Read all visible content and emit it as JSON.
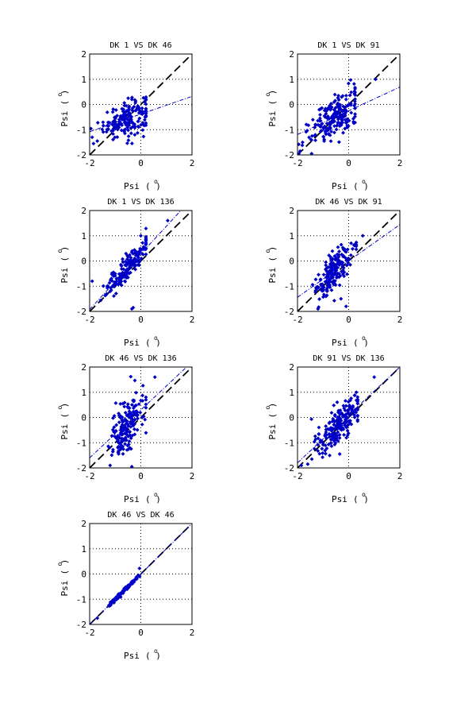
{
  "chart_data": [
    {
      "type": "scatter",
      "title": "DK  1 VS DK 46",
      "xlabel": "Psi",
      "xlabel_unit": "(  )",
      "ylabel": "Psi",
      "ylabel_unit": "(  )",
      "unit_superscript": "o",
      "xlim": [
        -2,
        2
      ],
      "ylim": [
        -2,
        2
      ],
      "xticks": [
        "-2",
        "0",
        "2"
      ],
      "yticks": [
        "-2",
        "-1",
        "0",
        "1",
        "2"
      ],
      "grid": true,
      "identity_line": true,
      "fit": {
        "slope": 0.35,
        "intercept": -0.38
      },
      "cloud": {
        "cx": -0.55,
        "cy": -0.55,
        "sx": 0.45,
        "sy": 0.38,
        "rho": 0.4,
        "n": 180,
        "xmin": -1.95,
        "xmax": 0.2
      },
      "extra_points": [
        [
          -1.9,
          -1.3
        ],
        [
          -1.85,
          -1.55
        ],
        [
          -1.7,
          -1.45
        ],
        [
          -0.35,
          0.2
        ],
        [
          0.05,
          -0.15
        ]
      ]
    },
    {
      "type": "scatter",
      "title": "DK  1 VS DK 91",
      "xlabel": "Psi",
      "xlabel_unit": "(  )",
      "ylabel": "Psi",
      "ylabel_unit": "(  )",
      "unit_superscript": "o",
      "xlim": [
        -2,
        2
      ],
      "ylim": [
        -2,
        2
      ],
      "xticks": [
        "-2",
        "0",
        "2"
      ],
      "yticks": [
        "-2",
        "-1",
        "0",
        "1",
        "2"
      ],
      "grid": true,
      "identity_line": true,
      "fit": {
        "slope": 0.47,
        "intercept": -0.25
      },
      "cloud": {
        "cx": -0.55,
        "cy": -0.5,
        "sx": 0.5,
        "sy": 0.5,
        "rho": 0.55,
        "n": 200,
        "xmin": -1.95,
        "xmax": 0.25
      },
      "extra_points": [
        [
          1.05,
          1.0
        ],
        [
          -1.9,
          -1.85
        ],
        [
          -1.8,
          -1.5
        ],
        [
          -0.1,
          0.2
        ],
        [
          -0.4,
          0.35
        ]
      ]
    },
    {
      "type": "scatter",
      "title": "DK  1 VS DK 136",
      "xlabel": "Psi",
      "xlabel_unit": "(  )",
      "ylabel": "Psi",
      "ylabel_unit": "(  )",
      "unit_superscript": "o",
      "xlim": [
        -2,
        2
      ],
      "ylim": [
        -2,
        2
      ],
      "xticks": [
        "-2",
        "0",
        "2"
      ],
      "yticks": [
        "-2",
        "-1",
        "0",
        "1",
        "2"
      ],
      "grid": true,
      "identity_line": true,
      "fit": {
        "slope": 1.1,
        "intercept": 0.28
      },
      "cloud": {
        "cx": -0.5,
        "cy": -0.25,
        "sx": 0.45,
        "sy": 0.55,
        "rho": 0.9,
        "n": 190,
        "xmin": -1.95,
        "xmax": 0.2
      },
      "extra_points": [
        [
          1.05,
          1.6
        ],
        [
          -0.35,
          -1.9
        ],
        [
          -0.3,
          -1.85
        ],
        [
          -1.9,
          -0.8
        ],
        [
          0.0,
          1.0
        ]
      ]
    },
    {
      "type": "scatter",
      "title": "DK 46 VS DK 91",
      "xlabel": "Psi",
      "xlabel_unit": "(  )",
      "ylabel": "Psi",
      "ylabel_unit": "(  )",
      "unit_superscript": "o",
      "xlim": [
        -2,
        2
      ],
      "ylim": [
        -2,
        2
      ],
      "xticks": [
        "-2",
        "0",
        "2"
      ],
      "yticks": [
        "-2",
        "-1",
        "0",
        "1",
        "2"
      ],
      "grid": true,
      "identity_line": true,
      "fit": {
        "slope": 0.72,
        "intercept": 0.0
      },
      "cloud": {
        "cx": -0.6,
        "cy": -0.45,
        "sx": 0.35,
        "sy": 0.5,
        "rho": 0.72,
        "n": 200,
        "xmin": -1.5,
        "xmax": 0.3
      },
      "extra_points": [
        [
          0.55,
          1.0
        ],
        [
          -0.1,
          -1.8
        ],
        [
          -0.3,
          -1.5
        ],
        [
          -1.2,
          -1.9
        ]
      ]
    },
    {
      "type": "scatter",
      "title": "DK 46 VS DK 136",
      "xlabel": "Psi",
      "xlabel_unit": "(  )",
      "ylabel": "Psi",
      "ylabel_unit": "(  )",
      "unit_superscript": "o",
      "xlim": [
        -2,
        2
      ],
      "ylim": [
        -2,
        2
      ],
      "xticks": [
        "-2",
        "0",
        "2"
      ],
      "yticks": [
        "-2",
        "-1",
        "0",
        "1",
        "2"
      ],
      "grid": true,
      "identity_line": true,
      "fit": {
        "slope": 0.95,
        "intercept": 0.3
      },
      "cloud": {
        "cx": -0.55,
        "cy": -0.3,
        "sx": 0.32,
        "sy": 0.65,
        "rho": 0.55,
        "n": 190,
        "xmin": -1.5,
        "xmax": 0.2
      },
      "extra_points": [
        [
          0.55,
          1.6
        ],
        [
          -0.35,
          -1.95
        ],
        [
          -1.2,
          -1.9
        ],
        [
          -0.7,
          0.55
        ],
        [
          0.05,
          0.0
        ]
      ]
    },
    {
      "type": "scatter",
      "title": "DK 91 VS DK 136",
      "xlabel": "Psi",
      "xlabel_unit": "(  )",
      "ylabel": "Psi",
      "ylabel_unit": "(  )",
      "unit_superscript": "o",
      "xlim": [
        -2,
        2
      ],
      "ylim": [
        -2,
        2
      ],
      "xticks": [
        "-2",
        "0",
        "2"
      ],
      "yticks": [
        "-2",
        "-1",
        "0",
        "1",
        "2"
      ],
      "grid": true,
      "identity_line": true,
      "fit": {
        "slope": 0.95,
        "intercept": 0.1
      },
      "cloud": {
        "cx": -0.45,
        "cy": -0.35,
        "sx": 0.45,
        "sy": 0.55,
        "rho": 0.78,
        "n": 200,
        "xmin": -1.9,
        "xmax": 0.35
      },
      "extra_points": [
        [
          1.0,
          1.6
        ],
        [
          -1.85,
          -1.9
        ],
        [
          -1.6,
          -1.85
        ],
        [
          0.3,
          1.0
        ],
        [
          -0.35,
          -1.45
        ]
      ]
    },
    {
      "type": "scatter",
      "title": "DK 46 VS DK 46",
      "xlabel": "Psi",
      "xlabel_unit": "(  )",
      "ylabel": "Psi",
      "ylabel_unit": "(  )",
      "unit_superscript": "o",
      "xlim": [
        -2,
        2
      ],
      "ylim": [
        -2,
        2
      ],
      "xticks": [
        "-2",
        "0",
        "2"
      ],
      "yticks": [
        "-2",
        "-1",
        "0",
        "1",
        "2"
      ],
      "grid": true,
      "identity_line": true,
      "fit": {
        "slope": 1.0,
        "intercept": 0.0
      },
      "cloud": {
        "cx": -0.75,
        "cy": -0.75,
        "sx": 0.3,
        "sy": 0.3,
        "rho": 0.995,
        "n": 140,
        "xmin": -1.75,
        "xmax": -0.05
      },
      "extra_points": [
        [
          -1.7,
          -1.75
        ],
        [
          -0.05,
          -0.1
        ],
        [
          -0.1,
          -0.05
        ]
      ]
    }
  ]
}
